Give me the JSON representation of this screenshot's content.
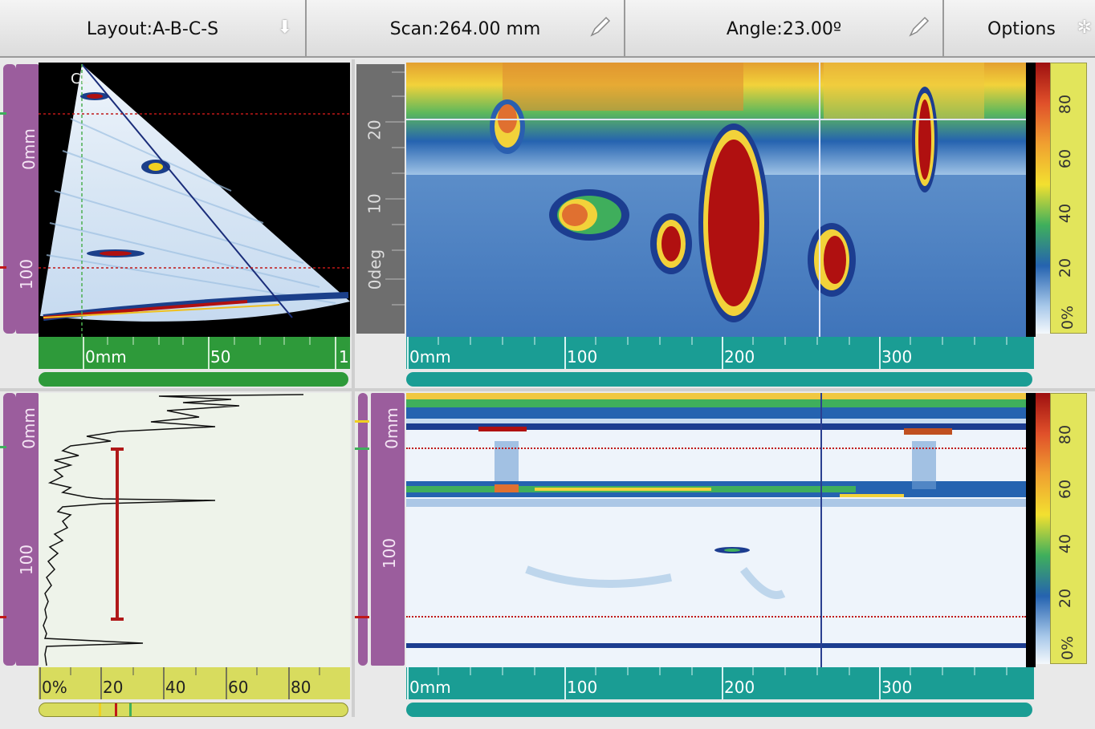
{
  "toolbar": {
    "layout_label": "Layout:A-B-C-S",
    "scan_label": "Scan:264.00 mm",
    "angle_label": "Angle:23.00º",
    "options_label": "Options"
  },
  "sscan": {
    "label": "CL",
    "ruler": [
      "0mm",
      "50",
      "1"
    ],
    "depth_ticks": [
      "0mm",
      "100"
    ]
  },
  "bscan_top": {
    "angle_ticks": [
      "20",
      "10",
      "0deg"
    ],
    "ruler": [
      "0mm",
      "100",
      "200",
      "300"
    ],
    "colorbar": [
      "80",
      "60",
      "40",
      "20",
      "0%"
    ]
  },
  "ascan": {
    "depth_ticks": [
      "0mm",
      "100"
    ],
    "ruler": [
      "0%",
      "20",
      "40",
      "60",
      "80"
    ]
  },
  "cscan": {
    "depth_ticks": [
      "0mm",
      "100"
    ],
    "ruler": [
      "0mm",
      "100",
      "200",
      "300"
    ],
    "colorbar": [
      "80",
      "60",
      "40",
      "20",
      "0%"
    ]
  },
  "colors": {
    "accent_purple": "#9b5d9d",
    "ruler_green": "#2e9a3a",
    "ruler_teal": "#1a9d94",
    "ruler_yellow": "#d8dc5e"
  }
}
